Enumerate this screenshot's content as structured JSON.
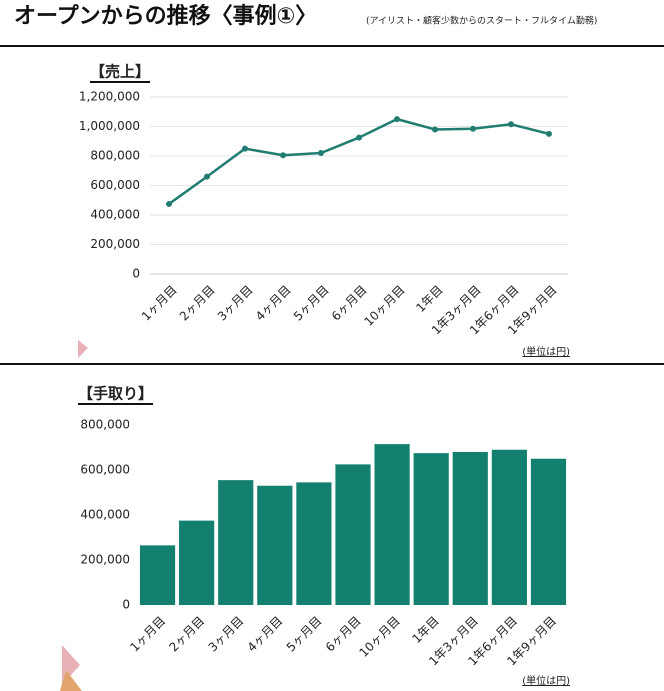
{
  "header": {
    "title": "オープンからの推移〈事例①〉",
    "subtitle": "(アイリスト・顧客少数からのスタート・フルタイム勤務)"
  },
  "chart_data": [
    {
      "type": "line",
      "title": "【売上】",
      "note": "(単位は円)",
      "color": "#217c72",
      "categories": [
        "1ヶ月目",
        "2ヶ月目",
        "3ヶ月目",
        "4ヶ月目",
        "5ヶ月目",
        "6ヶ月目",
        "10ヶ月目",
        "1年目",
        "1年3ヶ月目",
        "1年6ヶ月目",
        "1年9ヶ月目"
      ],
      "values": [
        475000,
        660000,
        850000,
        805000,
        820000,
        925000,
        1050000,
        980000,
        985000,
        1015000,
        950000
      ],
      "ylim": [
        0,
        1200000
      ],
      "yticks": [
        0,
        {
          "value": 200000,
          "label": "200,000"
        },
        {
          "value": 400000,
          "label": "400,000"
        },
        {
          "value": 600000,
          "label": "600,000"
        },
        {
          "value": 800000,
          "label": "800,000"
        },
        {
          "value": 1000000,
          "label": "1,000,000"
        },
        {
          "value": 1200000,
          "label": "1,200,000"
        }
      ],
      "grid": true
    },
    {
      "type": "bar",
      "title": "【手取り】",
      "note": "(単位は円)",
      "color": "#13806f",
      "categories": [
        "1ヶ月目",
        "2ヶ月目",
        "3ヶ月目",
        "4ヶ月目",
        "5ヶ月目",
        "6ヶ月目",
        "10ヶ月目",
        "1年目",
        "1年3ヶ月目",
        "1年6ヶ月目",
        "1年9ヶ月目"
      ],
      "values": [
        265000,
        375000,
        555000,
        530000,
        545000,
        625000,
        715000,
        675000,
        680000,
        690000,
        650000
      ],
      "ylim": [
        0,
        800000
      ],
      "yticks": [
        0,
        {
          "value": 200000,
          "label": "200,000"
        },
        {
          "value": 400000,
          "label": "400,000"
        },
        {
          "value": 600000,
          "label": "600,000"
        },
        {
          "value": 800000,
          "label": "800,000"
        }
      ],
      "grid": false
    }
  ]
}
